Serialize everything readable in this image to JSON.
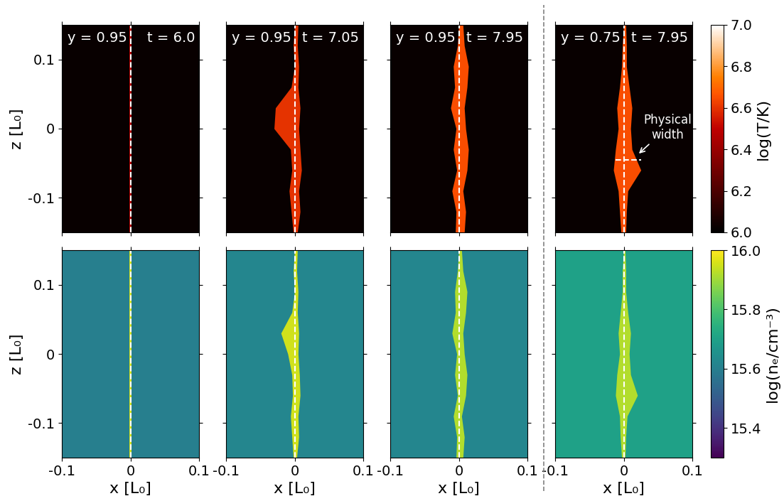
{
  "chart_data": [
    {
      "type": "heatmap",
      "annotations": [
        "y = 0.95",
        "t = 6.0"
      ],
      "ylabel": "z [L₀]",
      "tick_labels": "y",
      "xlim": [
        -0.1,
        0.1
      ],
      "ylim": [
        -0.15,
        0.15
      ],
      "xticks": [
        -0.1,
        0,
        0.1
      ],
      "yticks": [
        -0.1,
        0,
        0.1
      ],
      "color_range": [
        6.0,
        7.0
      ],
      "background": 6.02,
      "sheet_value": 6.45,
      "reference_x": 0,
      "sheet": {
        "z": [
          -0.15,
          0.15
        ],
        "x_left": [
          -0.002,
          -0.002
        ],
        "x_right": [
          0.002,
          0.002
        ]
      }
    },
    {
      "type": "heatmap",
      "annotations": [
        "y = 0.95",
        "t = 7.05"
      ],
      "tick_labels": false,
      "xlim": [
        -0.1,
        0.1
      ],
      "ylim": [
        -0.15,
        0.15
      ],
      "xticks": [
        -0.1,
        0,
        0.1
      ],
      "yticks": [
        -0.1,
        0,
        0.1
      ],
      "color_range": [
        6.0,
        7.0
      ],
      "background": 6.02,
      "sheet_value": 6.6,
      "reference_x": 0,
      "sheet": {
        "z": [
          -0.15,
          -0.12,
          -0.09,
          -0.06,
          -0.03,
          0,
          0.03,
          0.06,
          0.09,
          0.12,
          0.15
        ],
        "x_left": [
          -0.002,
          -0.005,
          -0.008,
          -0.004,
          -0.006,
          -0.03,
          -0.028,
          -0.005,
          0,
          -0.002,
          0.0
        ],
        "x_right": [
          0.004,
          0.008,
          0.006,
          0.01,
          0.008,
          0.006,
          0.008,
          0.005,
          0.006,
          0.004,
          0.005
        ]
      }
    },
    {
      "type": "heatmap",
      "annotations": [
        "y = 0.95",
        "t = 7.95"
      ],
      "tick_labels": false,
      "xlim": [
        -0.1,
        0.1
      ],
      "ylim": [
        -0.15,
        0.15
      ],
      "xticks": [
        -0.1,
        0,
        0.1
      ],
      "yticks": [
        -0.1,
        0,
        0.1
      ],
      "color_range": [
        6.0,
        7.0
      ],
      "background": 6.02,
      "sheet_value": 6.65,
      "reference_x": 0,
      "sheet": {
        "z": [
          -0.15,
          -0.12,
          -0.09,
          -0.06,
          -0.03,
          0,
          0.03,
          0.06,
          0.09,
          0.12,
          0.15
        ],
        "x_left": [
          -0.005,
          -0.004,
          -0.01,
          -0.003,
          -0.008,
          -0.004,
          -0.012,
          -0.006,
          -0.008,
          -0.002,
          0.0
        ],
        "x_right": [
          0.008,
          0.01,
          0.006,
          0.012,
          0.014,
          0.01,
          0.008,
          0.012,
          0.014,
          0.008,
          0.006
        ]
      }
    },
    {
      "type": "heatmap",
      "annotations": [
        "y = 0.75",
        "t = 7.95"
      ],
      "tick_labels": false,
      "xlim": [
        -0.1,
        0.1
      ],
      "ylim": [
        -0.15,
        0.15
      ],
      "xticks": [
        -0.1,
        0,
        0.1
      ],
      "yticks": [
        -0.1,
        0,
        0.1
      ],
      "color_range": [
        6.0,
        7.0
      ],
      "background": 6.02,
      "sheet_value": 6.65,
      "reference_x": 0,
      "sheet": {
        "z": [
          -0.15,
          -0.12,
          -0.09,
          -0.06,
          -0.03,
          0,
          0.03,
          0.06,
          0.09,
          0.12,
          0.15
        ],
        "x_left": [
          -0.004,
          -0.006,
          -0.008,
          -0.015,
          -0.012,
          -0.008,
          -0.01,
          -0.006,
          -0.003,
          -0.002,
          0
        ],
        "x_right": [
          0.003,
          0.004,
          0.006,
          0.025,
          0.012,
          0.01,
          0.012,
          0.008,
          0.004,
          0.004,
          0.003
        ]
      },
      "width_marker": {
        "z": -0.045,
        "x": [
          -0.012,
          0.025
        ]
      },
      "note": {
        "text": "Physical\nwidth",
        "point": [
          0.02,
          -0.038
        ]
      },
      "colorbar": {
        "label": "log(T/K)",
        "ticks": [
          6.0,
          6.2,
          6.4,
          6.6,
          6.8,
          7.0
        ]
      }
    },
    {
      "type": "heatmap",
      "xlabel": "x [L₀]",
      "ylabel": "z [L₀]",
      "xlim": [
        -0.1,
        0.1
      ],
      "ylim": [
        -0.15,
        0.15
      ],
      "xticks": [
        -0.1,
        0,
        0.1
      ],
      "yticks": [
        -0.1,
        0,
        0.1
      ],
      "color_range": [
        15.3,
        16.0
      ],
      "background": 15.6,
      "sheet_value": 15.95,
      "reference_x": 0,
      "sheet": {
        "z": [
          -0.15,
          0.15
        ],
        "x_left": [
          -0.002,
          -0.002
        ],
        "x_right": [
          0.002,
          0.002
        ]
      }
    },
    {
      "type": "heatmap",
      "xlabel": "x [L₀]",
      "tick_labels": "x",
      "xlim": [
        -0.1,
        0.1
      ],
      "ylim": [
        -0.15,
        0.15
      ],
      "xticks": [
        -0.1,
        0,
        0.1
      ],
      "yticks": [
        -0.1,
        0,
        0.1
      ],
      "color_range": [
        15.3,
        16.0
      ],
      "background": 15.62,
      "sheet_value": 15.95,
      "reference_x": 0,
      "sheet": {
        "z": [
          -0.15,
          -0.12,
          -0.09,
          -0.06,
          -0.03,
          0,
          0.03,
          0.06,
          0.09,
          0.12,
          0.15
        ],
        "x_left": [
          -0.002,
          -0.004,
          -0.006,
          -0.003,
          -0.004,
          -0.01,
          -0.02,
          -0.004,
          0,
          -0.002,
          0.0
        ],
        "x_right": [
          0.003,
          0.006,
          0.005,
          0.008,
          0.007,
          0.005,
          0.006,
          0.004,
          0.005,
          0.003,
          0.004
        ]
      }
    },
    {
      "type": "heatmap",
      "xlabel": "x [L₀]",
      "tick_labels": "x",
      "xlim": [
        -0.1,
        0.1
      ],
      "ylim": [
        -0.15,
        0.15
      ],
      "xticks": [
        -0.1,
        0,
        0.1
      ],
      "yticks": [
        -0.1,
        0,
        0.1
      ],
      "color_range": [
        15.3,
        16.0
      ],
      "background": 15.62,
      "sheet_value": 15.92,
      "reference_x": 0,
      "sheet": {
        "z": [
          -0.15,
          -0.12,
          -0.09,
          -0.06,
          -0.03,
          0,
          0.03,
          0.06,
          0.09,
          0.12,
          0.15
        ],
        "x_left": [
          -0.004,
          -0.003,
          -0.008,
          -0.002,
          -0.006,
          -0.003,
          -0.01,
          -0.005,
          -0.006,
          -0.002,
          0.0
        ],
        "x_right": [
          0.006,
          0.008,
          0.004,
          0.01,
          0.012,
          0.008,
          0.006,
          0.01,
          0.012,
          0.006,
          0.004
        ]
      }
    },
    {
      "type": "heatmap",
      "xlabel": "x [L₀]",
      "tick_labels": "x",
      "xlim": [
        -0.1,
        0.1
      ],
      "ylim": [
        -0.15,
        0.15
      ],
      "xticks": [
        -0.1,
        0,
        0.1
      ],
      "yticks": [
        -0.1,
        0,
        0.1
      ],
      "color_range": [
        15.3,
        16.0
      ],
      "background": 15.7,
      "sheet_value": 15.92,
      "reference_x": 0,
      "sheet": {
        "z": [
          -0.15,
          -0.12,
          -0.09,
          -0.06,
          -0.03,
          0,
          0.03,
          0.06,
          0.09,
          0.12,
          0.15
        ],
        "x_left": [
          -0.003,
          -0.005,
          -0.006,
          -0.012,
          -0.01,
          -0.006,
          -0.008,
          -0.005,
          -0.002,
          -0.002,
          0
        ],
        "x_right": [
          0.002,
          0.003,
          0.005,
          0.02,
          0.01,
          0.008,
          0.01,
          0.006,
          0.003,
          0.003,
          0.002
        ]
      },
      "colorbar": {
        "label": "log(nₑ/cm⁻³)",
        "ticks": [
          15.4,
          15.6,
          15.8,
          16.0
        ]
      }
    }
  ]
}
